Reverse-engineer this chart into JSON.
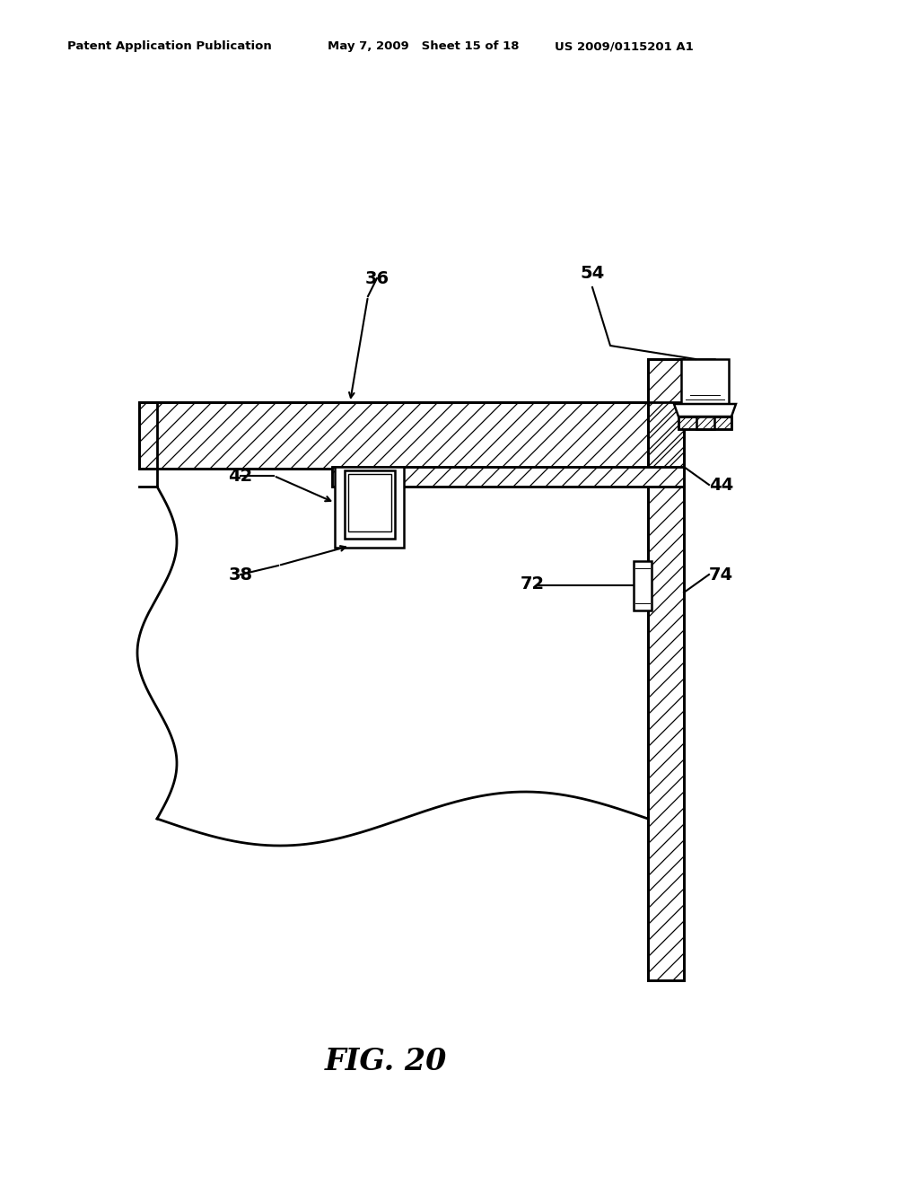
{
  "header_left": "Patent Application Publication",
  "header_mid": "May 7, 2009   Sheet 15 of 18",
  "header_right": "US 2009/0115201 A1",
  "fig_label": "FIG. 20",
  "bg_color": "#ffffff",
  "line_color": "#000000"
}
